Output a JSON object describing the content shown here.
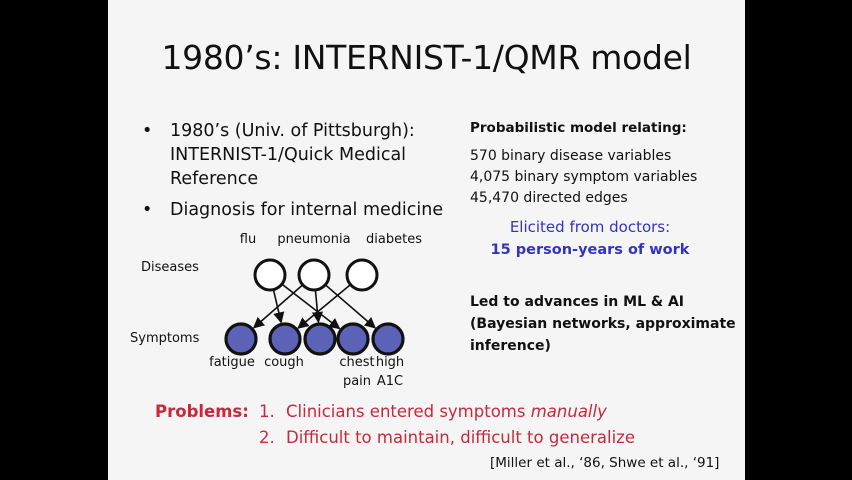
{
  "title": "1980’s: INTERNIST-1/QMR model",
  "bullets": [
    {
      "symbol": "•",
      "lines": [
        "1980’s (Univ. of Pittsburgh):",
        "INTERNIST-1/Quick Medical",
        "Reference"
      ]
    },
    {
      "symbol": "•",
      "lines": [
        "Diagnosis for internal medicine"
      ]
    }
  ],
  "model": {
    "heading": "Probabilistic model relating:",
    "stats": [
      "570 binary disease variables",
      "4,075 binary symptom variables",
      "45,470 directed edges"
    ],
    "elicited": "Elicited from doctors:",
    "effort": "15 person-years of work",
    "advances": [
      "Led to advances in ML & AI",
      "(Bayesian networks, approximate",
      "inference)"
    ]
  },
  "diagram": {
    "diseases_label": "Diseases",
    "symptoms_label": "Symptoms",
    "diseases": [
      "flu",
      "pneumonia",
      "diabetes"
    ],
    "symptoms": [
      [
        "fatigue"
      ],
      [
        "cough"
      ],
      [
        ""
      ],
      [
        "chest",
        "pain"
      ],
      [
        "high",
        "A1C"
      ]
    ],
    "edges": [
      [
        0,
        1
      ],
      [
        0,
        3
      ],
      [
        1,
        0
      ],
      [
        1,
        2
      ],
      [
        1,
        4
      ],
      [
        2,
        1
      ]
    ],
    "colors": {
      "disease_fill": "#ffffff",
      "symptom_fill": "#5b62b8",
      "stroke": "#111111"
    }
  },
  "problems": {
    "label": "Problems:",
    "items": [
      {
        "num": "1.",
        "text": "Clinicians entered symptoms ",
        "emph": "manually"
      },
      {
        "num": "2.",
        "text": "Difficult to maintain, difficult to generalize",
        "emph": ""
      }
    ]
  },
  "citation": "[Miller et al., ‘86, Shwe et al., ‘91]",
  "colors": {
    "problem_red": "#c8283c",
    "accent_blue": "#3333c0"
  }
}
